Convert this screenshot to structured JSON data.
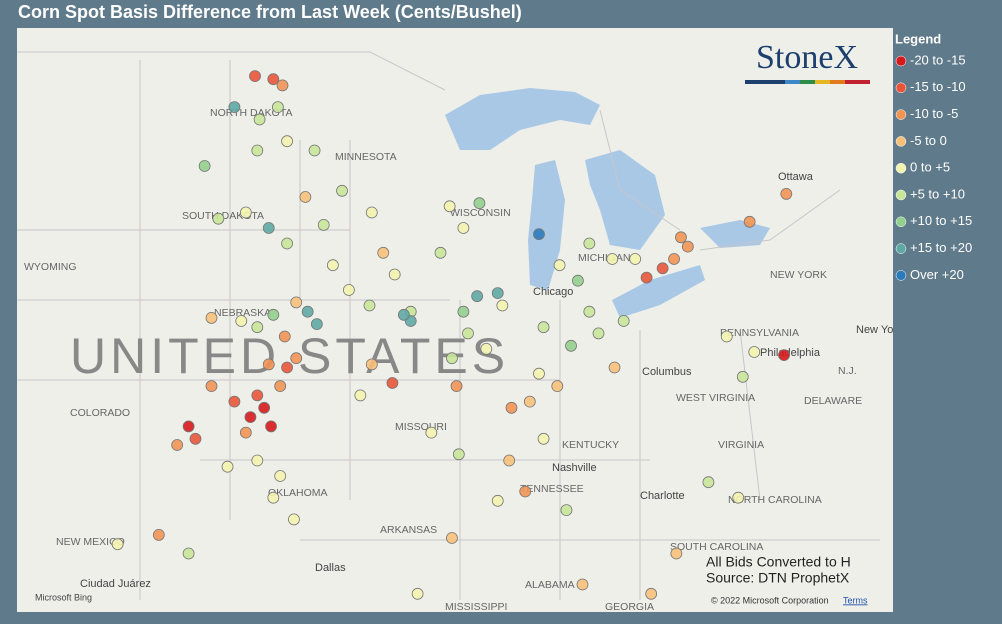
{
  "title": "Corn Spot Basis Difference from Last Week (Cents/Bushel)",
  "legend": {
    "title": "Legend",
    "items": [
      {
        "label": "-20 to -15",
        "color": "#d7191c",
        "from": -20
      },
      {
        "label": "-15 to -10",
        "color": "#e8553a",
        "from": -15
      },
      {
        "label": "-10 to -5",
        "color": "#f19454",
        "from": -10
      },
      {
        "label": "-5 to 0",
        "color": "#f7c07a",
        "from": -5
      },
      {
        "label": "0 to +5",
        "color": "#f3f3b0",
        "from": 0
      },
      {
        "label": "+5 to +10",
        "color": "#c8e59a",
        "from": 5
      },
      {
        "label": "+10 to +15",
        "color": "#93cf8e",
        "from": 10
      },
      {
        "label": "+15 to +20",
        "color": "#5fa9a5",
        "from": 15
      },
      {
        "label": "Over +20",
        "color": "#2b7bba",
        "from": 20
      }
    ]
  },
  "logo": "StoneX",
  "notes": [
    "All Bids Converted to H",
    "Source: DTN ProphetX"
  ],
  "copyright": "© 2022 Microsoft Corporation",
  "terms": "Terms",
  "bing": "Microsoft Bing",
  "map_labels": [
    "NORTH DAKOTA",
    "MINNESOTA",
    "SOUTH DAKOTA",
    "WISCONSIN",
    "WYOMING",
    "NEBRASKA",
    "UNITED STATES",
    "COLORADO",
    "MISSOURI",
    "OKLAHOMA",
    "KENTUCKY",
    "Nashville",
    "TENNESSEE",
    "ARKANSAS",
    "NEW MEXICO",
    "Dallas",
    "Ciudad Juárez",
    "MISSISSIPPI",
    "ALABAMA",
    "GEORGIA",
    "Charlotte",
    "NORTH CAROLINA",
    "SOUTH CAROLINA",
    "VIRGINIA",
    "WEST VIRGINIA",
    "PENNSYLVANIA",
    "Philadelphia",
    "DELAWARE",
    "NEW YORK",
    "Ottawa",
    "Columbus",
    "Chicago",
    "MICHIGAN",
    "N.J.",
    "New York"
  ],
  "points": [
    [
      -98.2,
      38.2,
      -17
    ],
    [
      -98.8,
      37.9,
      -16
    ],
    [
      -97.9,
      37.6,
      -18
    ],
    [
      -99.5,
      38.4,
      -13
    ],
    [
      -98.5,
      38.6,
      -11
    ],
    [
      -97.5,
      38.9,
      -8
    ],
    [
      -99.0,
      37.4,
      -9
    ],
    [
      -101.5,
      37.6,
      -16
    ],
    [
      -101.2,
      37.2,
      -12
    ],
    [
      -102.0,
      37.0,
      -7
    ],
    [
      -100.5,
      38.9,
      -7
    ],
    [
      -97.2,
      39.5,
      -12
    ],
    [
      -96.8,
      39.8,
      -9
    ],
    [
      -98.0,
      39.6,
      -6
    ],
    [
      -98.5,
      36.5,
      2
    ],
    [
      -97.5,
      36.0,
      3
    ],
    [
      -99.8,
      36.3,
      1
    ],
    [
      -97.8,
      35.3,
      4
    ],
    [
      -96.9,
      34.6,
      2
    ],
    [
      -98.5,
      40.8,
      6
    ],
    [
      -97.8,
      41.2,
      14
    ],
    [
      -99.2,
      41.0,
      3
    ],
    [
      -96.8,
      41.6,
      -4
    ],
    [
      -100.5,
      41.1,
      -5
    ],
    [
      -97.3,
      40.5,
      -7
    ],
    [
      -96.3,
      41.3,
      16
    ],
    [
      -95.9,
      40.9,
      17
    ],
    [
      -94.5,
      42.0,
      3
    ],
    [
      -93.6,
      41.5,
      6
    ],
    [
      -92.5,
      42.5,
      4
    ],
    [
      -91.8,
      41.3,
      7
    ],
    [
      -95.2,
      42.8,
      1
    ],
    [
      -93.0,
      43.2,
      -2
    ],
    [
      -91.8,
      41.0,
      18
    ],
    [
      -92.1,
      41.2,
      16
    ],
    [
      -94.8,
      45.2,
      5
    ],
    [
      -95.6,
      44.1,
      8
    ],
    [
      -93.5,
      44.5,
      2
    ],
    [
      -96.0,
      46.5,
      6
    ],
    [
      -96.4,
      45.0,
      -3
    ],
    [
      -97.8,
      48.8,
      -14
    ],
    [
      -98.6,
      48.9,
      -12
    ],
    [
      -97.4,
      48.6,
      -8
    ],
    [
      -97.6,
      47.9,
      6
    ],
    [
      -98.4,
      47.5,
      7
    ],
    [
      -99.5,
      47.9,
      17
    ],
    [
      -98.5,
      46.5,
      5
    ],
    [
      -97.2,
      46.8,
      4
    ],
    [
      -100.8,
      46.0,
      12
    ],
    [
      -99.0,
      44.5,
      3
    ],
    [
      -98.0,
      44.0,
      15
    ],
    [
      -97.2,
      43.5,
      6
    ],
    [
      -100.2,
      44.3,
      7
    ],
    [
      -89.5,
      44.0,
      3
    ],
    [
      -90.5,
      43.2,
      5
    ],
    [
      -88.8,
      44.8,
      13
    ],
    [
      -90.1,
      44.7,
      1
    ],
    [
      -89.3,
      40.6,
      5
    ],
    [
      -88.5,
      40.1,
      3
    ],
    [
      -90.0,
      39.8,
      7
    ],
    [
      -88.9,
      41.8,
      18
    ],
    [
      -88.0,
      41.9,
      19
    ],
    [
      -87.8,
      41.5,
      2
    ],
    [
      -89.8,
      38.9,
      -6
    ],
    [
      -89.5,
      41.3,
      13
    ],
    [
      -93.5,
      39.6,
      -5
    ],
    [
      -92.6,
      39.0,
      -11
    ],
    [
      -94.0,
      38.6,
      4
    ],
    [
      -90.9,
      37.4,
      2
    ],
    [
      -89.7,
      36.7,
      6
    ],
    [
      -86.6,
      38.4,
      -4
    ],
    [
      -87.4,
      38.2,
      -7
    ],
    [
      -86.2,
      39.3,
      1
    ],
    [
      -86.0,
      40.8,
      8
    ],
    [
      -84.8,
      40.2,
      12
    ],
    [
      -83.6,
      40.6,
      6
    ],
    [
      -82.9,
      39.5,
      -3
    ],
    [
      -84.0,
      41.3,
      5
    ],
    [
      -82.5,
      41.0,
      9
    ],
    [
      -85.4,
      38.9,
      -5
    ],
    [
      -86.0,
      37.2,
      4
    ],
    [
      -87.5,
      36.5,
      -4
    ],
    [
      -86.8,
      35.5,
      -6
    ],
    [
      -88.0,
      35.2,
      3
    ],
    [
      -85.0,
      34.9,
      9
    ],
    [
      -86.2,
      43.8,
      20
    ],
    [
      -85.3,
      42.8,
      4
    ],
    [
      -84.0,
      43.5,
      6
    ],
    [
      -83.0,
      43.0,
      3
    ],
    [
      -84.5,
      42.3,
      13
    ],
    [
      -80.8,
      42.7,
      -12
    ],
    [
      -80.3,
      43.0,
      -9
    ],
    [
      -79.7,
      43.4,
      -6
    ],
    [
      -81.5,
      42.4,
      -14
    ],
    [
      -80.0,
      43.7,
      -8
    ],
    [
      -82.0,
      43.0,
      4
    ],
    [
      -77.0,
      44.2,
      -6
    ],
    [
      -75.4,
      45.1,
      -7
    ],
    [
      -75.5,
      39.9,
      -16
    ],
    [
      -76.8,
      40.0,
      1
    ],
    [
      -78.0,
      40.5,
      4
    ],
    [
      -77.3,
      39.2,
      7
    ],
    [
      -78.8,
      35.8,
      6
    ],
    [
      -77.5,
      35.3,
      4
    ],
    [
      -80.2,
      33.5,
      -3
    ],
    [
      -81.3,
      32.2,
      -5
    ],
    [
      -84.3,
      32.5,
      -4
    ],
    [
      -90.0,
      34.0,
      -4
    ],
    [
      -91.5,
      32.2,
      4
    ],
    [
      -101.5,
      33.5,
      5
    ],
    [
      -102.8,
      34.1,
      -7
    ],
    [
      -104.6,
      33.8,
      3
    ]
  ]
}
